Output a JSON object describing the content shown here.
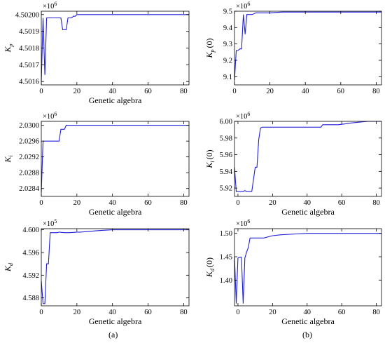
{
  "line_color": "#1f1fd6",
  "chart_data": [
    {
      "type": "line",
      "xlabel": "Genetic algebra",
      "ylabel_main": "K",
      "ylabel_sub": "p",
      "ylabel_suffix": "",
      "exponent": "×10",
      "exponent_power": "6",
      "xlim": [
        0,
        83
      ],
      "ylim": [
        4.50158,
        4.50202
      ],
      "xticks": [
        0,
        20,
        40,
        60,
        80
      ],
      "xtick_labels": [
        "0",
        "20",
        "40",
        "60",
        "80"
      ],
      "yticks": [
        4.5016,
        4.5017,
        4.5018,
        4.5019,
        4.502
      ],
      "ytick_labels": [
        "4.5016",
        "4.5017",
        "4.5018",
        "4.5019",
        "4.50200"
      ],
      "x": [
        0,
        1,
        2,
        3,
        4,
        5,
        6,
        7,
        8,
        9,
        10,
        11,
        12,
        13,
        14,
        15,
        16,
        17,
        18,
        19,
        20,
        21,
        22,
        83
      ],
      "y": [
        4.5016,
        4.50198,
        4.50164,
        4.50198,
        4.50198,
        4.50198,
        4.50198,
        4.50198,
        4.50198,
        4.50198,
        4.50198,
        4.50198,
        4.50191,
        4.50191,
        4.50191,
        4.50198,
        4.50198,
        4.50198,
        4.50199,
        4.50199,
        4.502,
        4.502,
        4.502,
        4.502
      ]
    },
    {
      "type": "line",
      "xlabel": "",
      "ylabel_main": "K",
      "ylabel_sub": "p",
      "ylabel_suffix": "(0)",
      "exponent": "×10",
      "exponent_power": "6",
      "xlim": [
        0,
        83
      ],
      "ylim": [
        9.05,
        9.5
      ],
      "xticks": [
        0,
        20,
        40,
        60,
        80
      ],
      "xtick_labels": [
        "0",
        "20",
        "40",
        "60",
        "80"
      ],
      "yticks": [
        9.1,
        9.2,
        9.3,
        9.4,
        9.5
      ],
      "ytick_labels": [
        "9.1",
        "9.2",
        "9.3",
        "9.4",
        "9.5"
      ],
      "x": [
        0,
        1,
        2,
        3,
        4,
        5,
        6,
        7,
        8,
        9,
        10,
        12,
        15,
        20,
        27,
        83
      ],
      "y": [
        9.08,
        9.26,
        9.26,
        9.27,
        9.27,
        9.48,
        9.36,
        9.48,
        9.48,
        9.48,
        9.48,
        9.49,
        9.49,
        9.49,
        9.495,
        9.495
      ]
    },
    {
      "type": "line",
      "xlabel": "Genetic algebra",
      "ylabel_main": "K",
      "ylabel_sub": "i",
      "ylabel_suffix": "",
      "exponent": "×10",
      "exponent_power": "6",
      "xlim": [
        0,
        83
      ],
      "ylim": [
        2.0282,
        2.0301
      ],
      "xticks": [
        0,
        20,
        40,
        60,
        80
      ],
      "xtick_labels": [
        "0",
        "20",
        "40",
        "60",
        "80"
      ],
      "yticks": [
        2.0284,
        2.0288,
        2.0292,
        2.0296,
        2.03
      ],
      "ytick_labels": [
        "2.0284",
        "2.0288",
        "2.0292",
        "2.0296",
        "2.0300"
      ],
      "x": [
        0,
        1,
        2,
        3,
        10,
        11,
        12,
        13,
        14,
        15,
        18,
        34,
        83
      ],
      "y": [
        2.0283,
        2.0296,
        2.0296,
        2.0296,
        2.0296,
        2.0299,
        2.0299,
        2.0299,
        2.03,
        2.03,
        2.03,
        2.03,
        2.03
      ]
    },
    {
      "type": "line",
      "xlabel": "Genetic algebra",
      "ylabel_main": "K",
      "ylabel_sub": "i",
      "ylabel_suffix": "(0)",
      "exponent": "×10",
      "exponent_power": "6",
      "xlim": [
        -2,
        83
      ],
      "ylim": [
        5.91,
        6.0
      ],
      "xticks": [
        0,
        20,
        40,
        60,
        80
      ],
      "xtick_labels": [
        "0",
        "20",
        "40",
        "60",
        "80"
      ],
      "yticks": [
        5.92,
        5.94,
        5.96,
        5.98,
        6.0
      ],
      "ytick_labels": [
        "5.92",
        "5.94",
        "5.96",
        "5.98",
        "6.00"
      ],
      "x": [
        -2,
        -1,
        0,
        3,
        4,
        5,
        7,
        8,
        10,
        11,
        12,
        13,
        14,
        15,
        30,
        48,
        49,
        58,
        62,
        65,
        70,
        75,
        83
      ],
      "y": [
        5.945,
        5.916,
        5.916,
        5.916,
        5.917,
        5.916,
        5.916,
        5.916,
        5.945,
        5.945,
        5.978,
        5.992,
        5.993,
        5.993,
        5.993,
        5.993,
        5.996,
        5.996,
        5.997,
        5.998,
        5.999,
        6.0,
        6.0
      ]
    },
    {
      "type": "line",
      "xlabel": "Genetic algebra",
      "ylabel_main": "K",
      "ylabel_sub": "d",
      "ylabel_suffix": "",
      "exponent": "×10",
      "exponent_power": "5",
      "xlim": [
        0,
        83
      ],
      "ylim": [
        4.5866,
        4.6002
      ],
      "xticks": [
        0,
        20,
        40,
        60,
        80
      ],
      "xtick_labels": [
        "0",
        "20",
        "40",
        "60",
        "80"
      ],
      "yticks": [
        4.588,
        4.592,
        4.596,
        4.6
      ],
      "ytick_labels": [
        "4.588",
        "4.592",
        "4.596",
        "4.600"
      ],
      "x": [
        0,
        1,
        2,
        3,
        4,
        5,
        6,
        9,
        10,
        13,
        16,
        20,
        22,
        30,
        34,
        40,
        83
      ],
      "y": [
        4.591,
        4.587,
        4.587,
        4.594,
        4.594,
        4.5995,
        4.5995,
        4.5995,
        4.5996,
        4.5995,
        4.5995,
        4.5996,
        4.5996,
        4.5998,
        4.5999,
        4.6,
        4.6
      ]
    },
    {
      "type": "line",
      "xlabel": "Genetic algebra",
      "ylabel_main": "K",
      "ylabel_sub": "d",
      "ylabel_suffix": "(0)",
      "exponent": "×10",
      "exponent_power": "6",
      "xlim": [
        -2,
        83
      ],
      "ylim": [
        1.345,
        1.51
      ],
      "xticks": [
        0,
        20,
        40,
        60,
        80
      ],
      "xtick_labels": [
        "0",
        "20",
        "40",
        "60",
        "80"
      ],
      "yticks": [
        1.4,
        1.45,
        1.5
      ],
      "ytick_labels": [
        "1.40",
        "1.45",
        "1.50"
      ],
      "x": [
        -2,
        -1,
        0,
        1,
        2,
        3,
        4,
        5,
        6,
        7,
        8,
        10,
        15,
        20,
        25,
        30,
        40,
        83
      ],
      "y": [
        1.45,
        1.35,
        1.447,
        1.449,
        1.449,
        1.35,
        1.447,
        1.46,
        1.47,
        1.49,
        1.49,
        1.49,
        1.49,
        1.495,
        1.497,
        1.498,
        1.5,
        1.5
      ]
    }
  ],
  "captions": [
    "(a)",
    "(b)"
  ]
}
